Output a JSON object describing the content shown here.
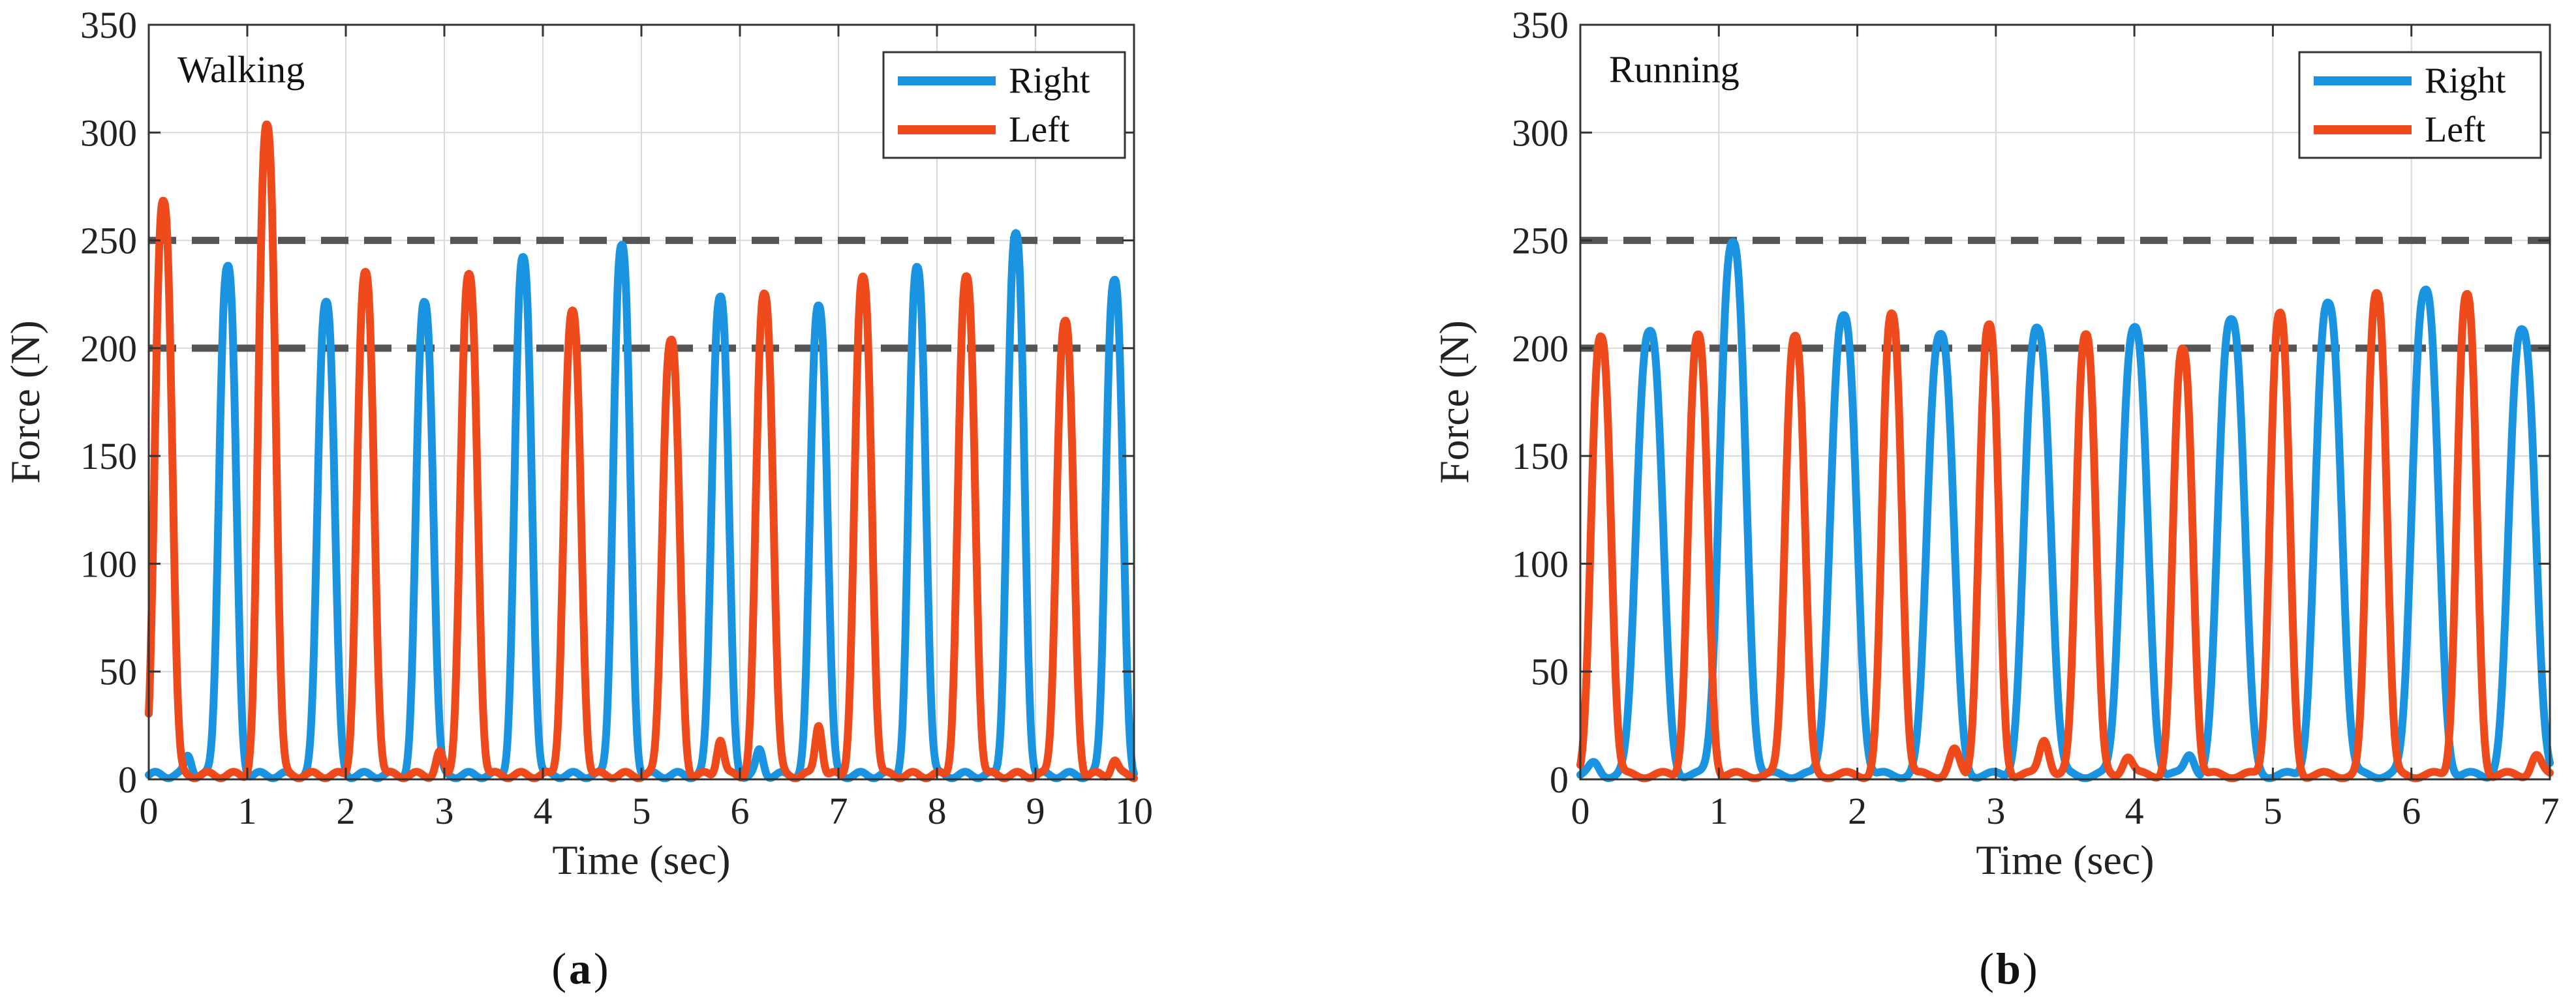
{
  "chart_data": [
    {
      "type": "line",
      "panel_label": "a",
      "title": "Walking",
      "xlabel": "Time (sec)",
      "ylabel": "Force (N)",
      "xlim": [
        0,
        10
      ],
      "ylim": [
        0,
        350
      ],
      "xticks": [
        "0",
        "1",
        "2",
        "3",
        "4",
        "5",
        "6",
        "7",
        "8",
        "9",
        "10"
      ],
      "yticks": [
        "0",
        "50",
        "100",
        "150",
        "200",
        "250",
        "300",
        "350"
      ],
      "grid": true,
      "legend_position": "top-right",
      "reference_lines": [
        200,
        250
      ],
      "colors": {
        "Right": "#1a94e0",
        "Left": "#ee4a1c",
        "reference": "#555555",
        "grid": "#d9d9d9"
      },
      "series": [
        {
          "name": "Right",
          "peaks": [
            [
              0.8,
              236
            ],
            [
              1.8,
              221
            ],
            [
              2.8,
              220
            ],
            [
              3.8,
              239
            ],
            [
              4.8,
              245
            ],
            [
              5.8,
              223
            ],
            [
              6.8,
              219
            ],
            [
              7.8,
              235
            ],
            [
              8.8,
              250
            ],
            [
              9.8,
              230
            ]
          ],
          "width": 0.11,
          "baseline": [
            [
              0.4,
              9
            ],
            [
              4.9,
              8
            ],
            [
              6.2,
              11
            ]
          ]
        },
        {
          "name": "Left",
          "peaks": [
            [
              0.15,
              267
            ],
            [
              1.2,
              302
            ],
            [
              2.2,
              232
            ],
            [
              3.25,
              231
            ],
            [
              4.3,
              214
            ],
            [
              5.3,
              202
            ],
            [
              6.25,
              224
            ],
            [
              7.25,
              230
            ],
            [
              8.3,
              230
            ],
            [
              9.3,
              210
            ]
          ],
          "width": 0.11,
          "baseline": [
            [
              2.95,
              10
            ],
            [
              5.8,
              17
            ],
            [
              6.8,
              24
            ],
            [
              9.8,
              7
            ]
          ]
        }
      ]
    },
    {
      "type": "line",
      "panel_label": "b",
      "title": "Running",
      "xlabel": "Time (sec)",
      "ylabel": "Force (N)",
      "xlim": [
        0,
        7
      ],
      "ylim": [
        0,
        350
      ],
      "xticks": [
        "0",
        "1",
        "2",
        "3",
        "4",
        "5",
        "6",
        "7"
      ],
      "yticks": [
        "0",
        "50",
        "100",
        "150",
        "200",
        "250",
        "300",
        "350"
      ],
      "grid": true,
      "legend_position": "top-right",
      "reference_lines": [
        200,
        250
      ],
      "colors": {
        "Right": "#1a94e0",
        "Left": "#ee4a1c",
        "reference": "#555555",
        "grid": "#d9d9d9"
      },
      "series": [
        {
          "name": "Right",
          "peaks": [
            [
              0.5,
              207
            ],
            [
              1.1,
              246
            ],
            [
              1.9,
              212
            ],
            [
              2.6,
              206
            ],
            [
              3.3,
              207
            ],
            [
              4.0,
              207
            ],
            [
              4.7,
              213
            ],
            [
              5.4,
              218
            ],
            [
              6.1,
              225
            ],
            [
              6.8,
              208
            ]
          ],
          "width": 0.12,
          "baseline": [
            [
              0.1,
              5
            ],
            [
              4.4,
              10
            ]
          ]
        },
        {
          "name": "Left",
          "peaks": [
            [
              0.15,
              204
            ],
            [
              0.85,
              203
            ],
            [
              1.55,
              205
            ],
            [
              2.25,
              214
            ],
            [
              2.95,
              208
            ],
            [
              3.65,
              206
            ],
            [
              4.35,
              197
            ],
            [
              5.05,
              214
            ],
            [
              5.75,
              225
            ],
            [
              6.4,
              222
            ]
          ],
          "width": 0.09,
          "baseline": [
            [
              2.7,
              11
            ],
            [
              3.35,
              17
            ],
            [
              3.95,
              9
            ],
            [
              6.9,
              9
            ]
          ]
        }
      ]
    }
  ]
}
